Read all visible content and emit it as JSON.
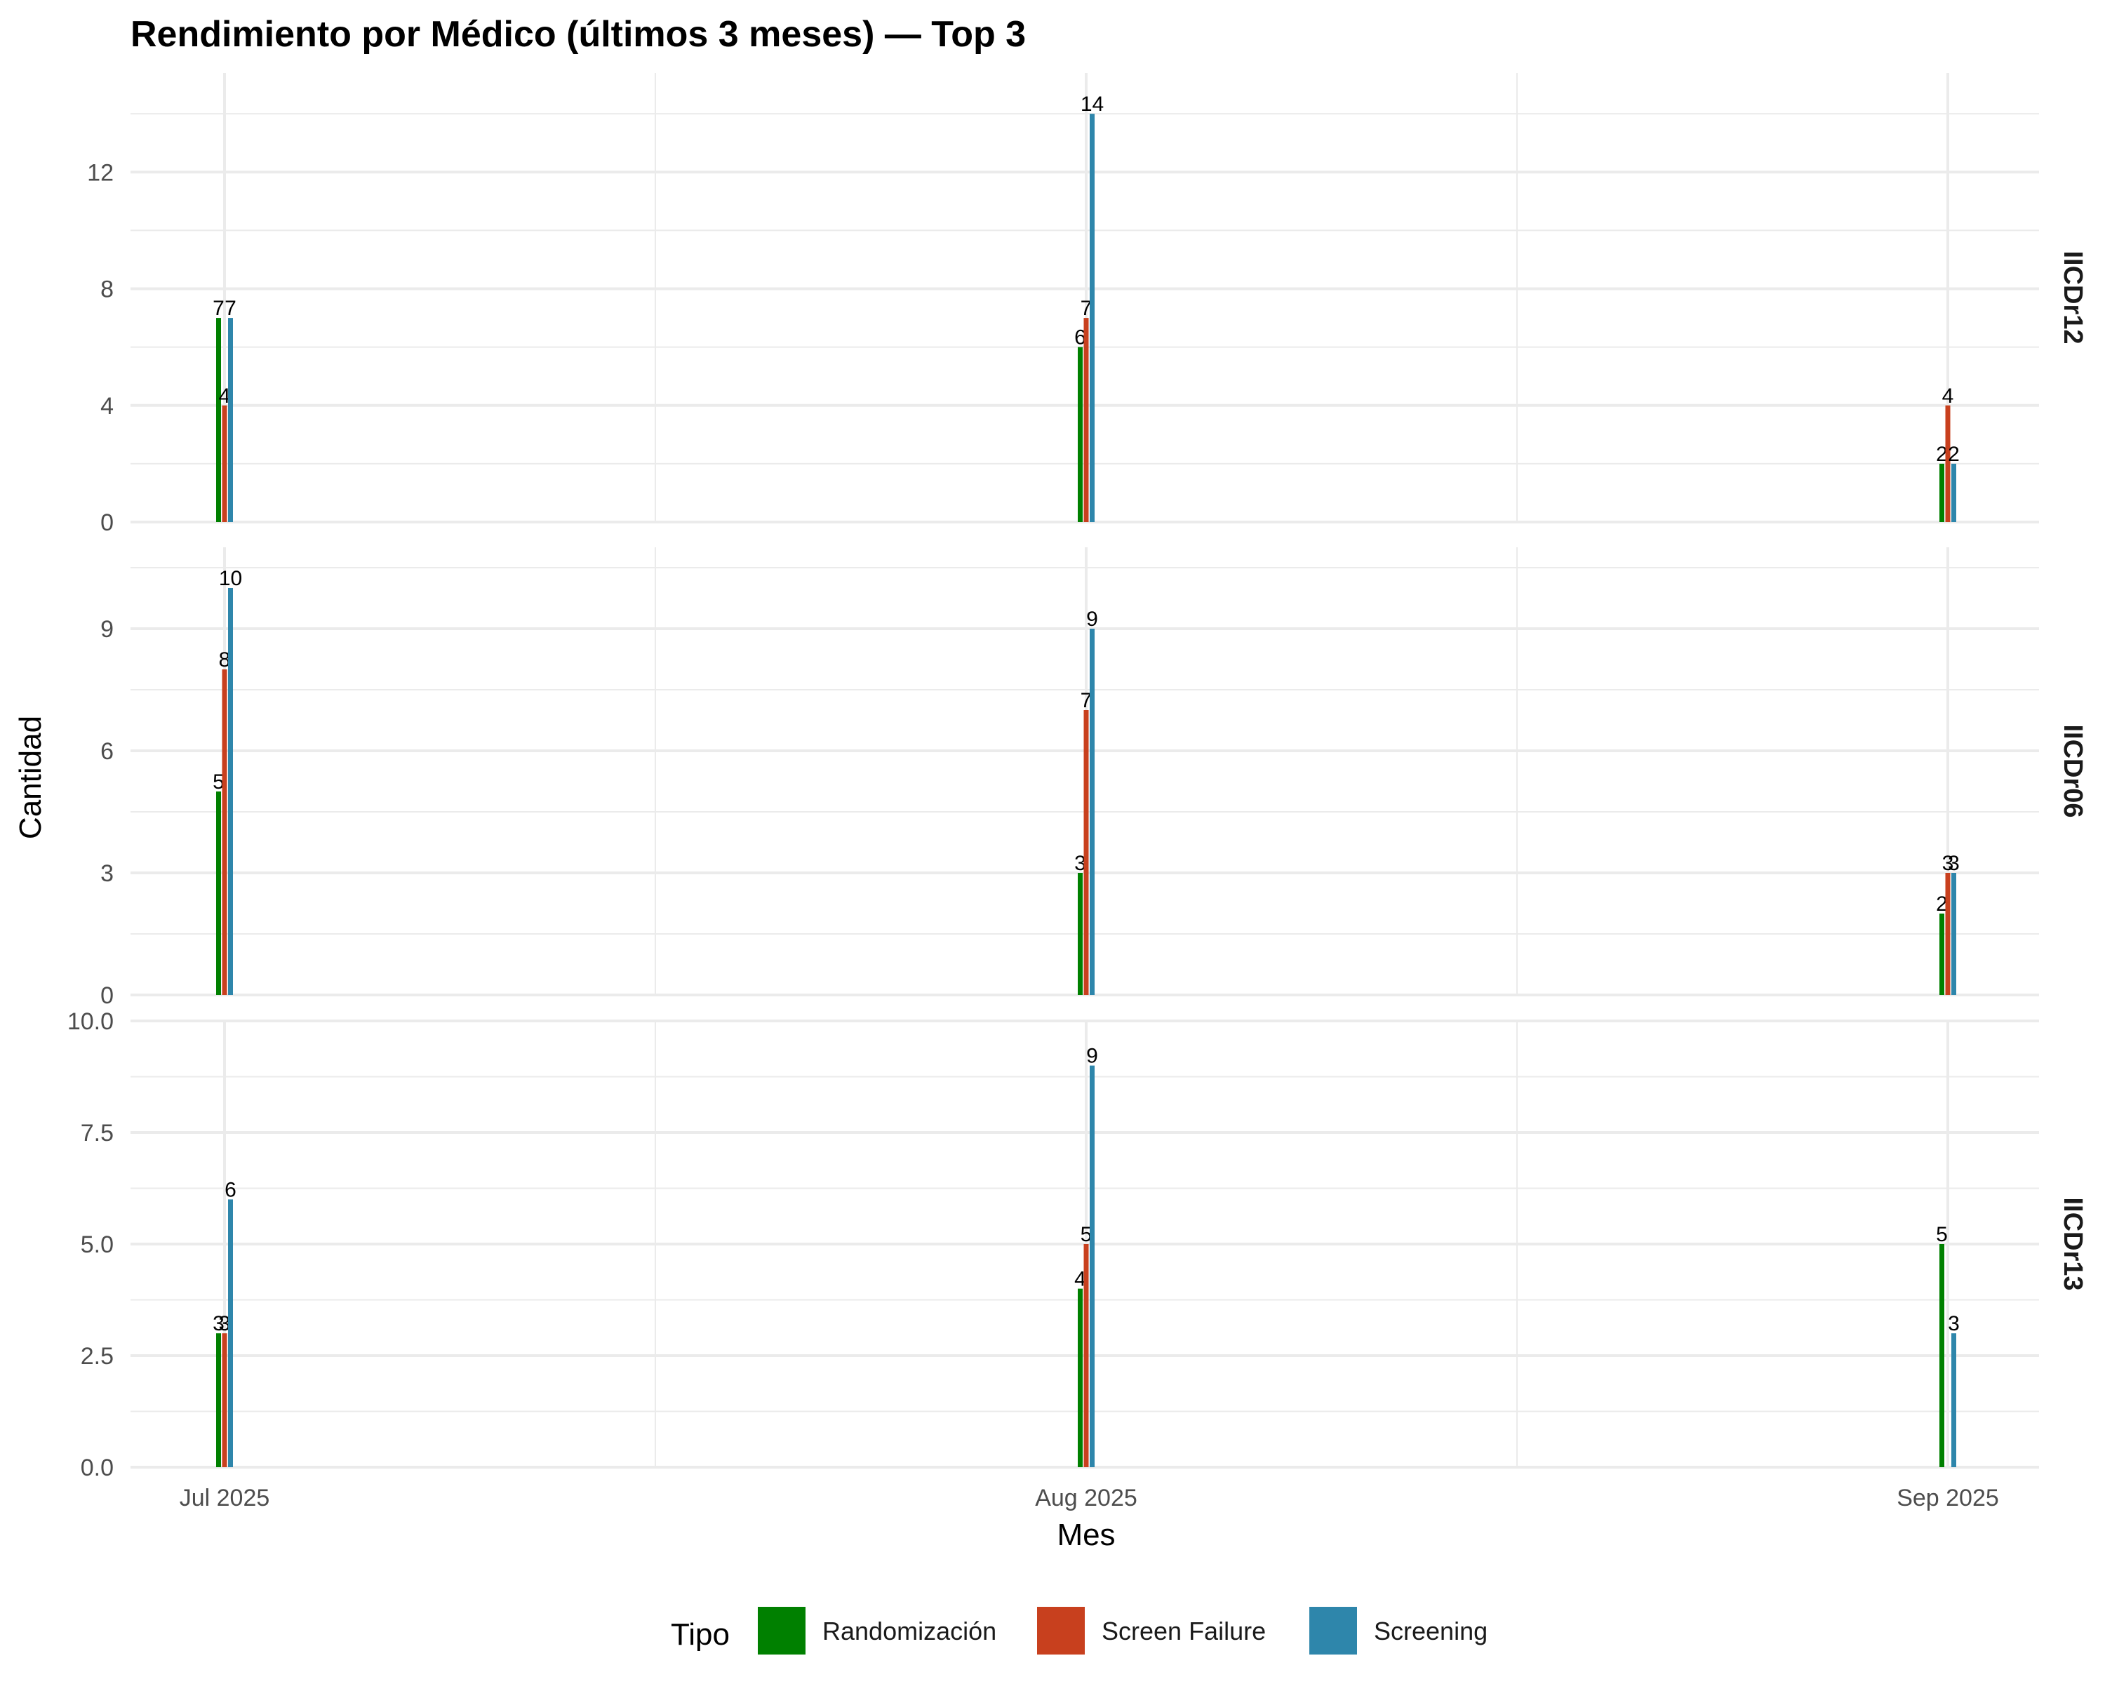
{
  "chart_data": {
    "type": "bar",
    "title": "Rendimiento por Médico (últimos 3 meses) — Top 3",
    "xlabel": "Mes",
    "ylabel": "Cantidad",
    "categories": [
      "Jul 2025",
      "Aug 2025",
      "Sep 2025"
    ],
    "legend": {
      "title": "Tipo",
      "position": "bottom",
      "entries": [
        "Randomización",
        "Screen Failure",
        "Screening"
      ]
    },
    "colors": {
      "Randomización": "#008000",
      "Screen Failure": "#C8401E",
      "Screening": "#2E86AB"
    },
    "grid": true,
    "panels": [
      {
        "label": "IICDr12",
        "ylim": [
          0,
          15.4
        ],
        "yticks": [
          0,
          4,
          8,
          12
        ],
        "ytick_labels": [
          "0",
          "4",
          "8",
          "12"
        ],
        "series": [
          {
            "name": "Randomización",
            "values": [
              7,
              6,
              2
            ]
          },
          {
            "name": "Screen Failure",
            "values": [
              4,
              7,
              4
            ]
          },
          {
            "name": "Screening",
            "values": [
              7,
              14,
              2
            ]
          }
        ]
      },
      {
        "label": "IICDr06",
        "ylim": [
          0,
          11
        ],
        "yticks": [
          0,
          3,
          6,
          9
        ],
        "ytick_labels": [
          "0",
          "3",
          "6",
          "9"
        ],
        "series": [
          {
            "name": "Randomización",
            "values": [
              5,
              3,
              2
            ]
          },
          {
            "name": "Screen Failure",
            "values": [
              8,
              7,
              3
            ]
          },
          {
            "name": "Screening",
            "values": [
              10,
              9,
              3
            ]
          }
        ]
      },
      {
        "label": "IICDr13",
        "ylim": [
          0,
          10
        ],
        "yticks": [
          0,
          2.5,
          5,
          7.5,
          10
        ],
        "ytick_labels": [
          "0.0",
          "2.5",
          "5.0",
          "7.5",
          "10.0"
        ],
        "series": [
          {
            "name": "Randomización",
            "values": [
              3,
              4,
              5
            ]
          },
          {
            "name": "Screen Failure",
            "values": [
              3,
              5,
              0
            ]
          },
          {
            "name": "Screening",
            "values": [
              6,
              9,
              3
            ]
          }
        ]
      }
    ]
  }
}
